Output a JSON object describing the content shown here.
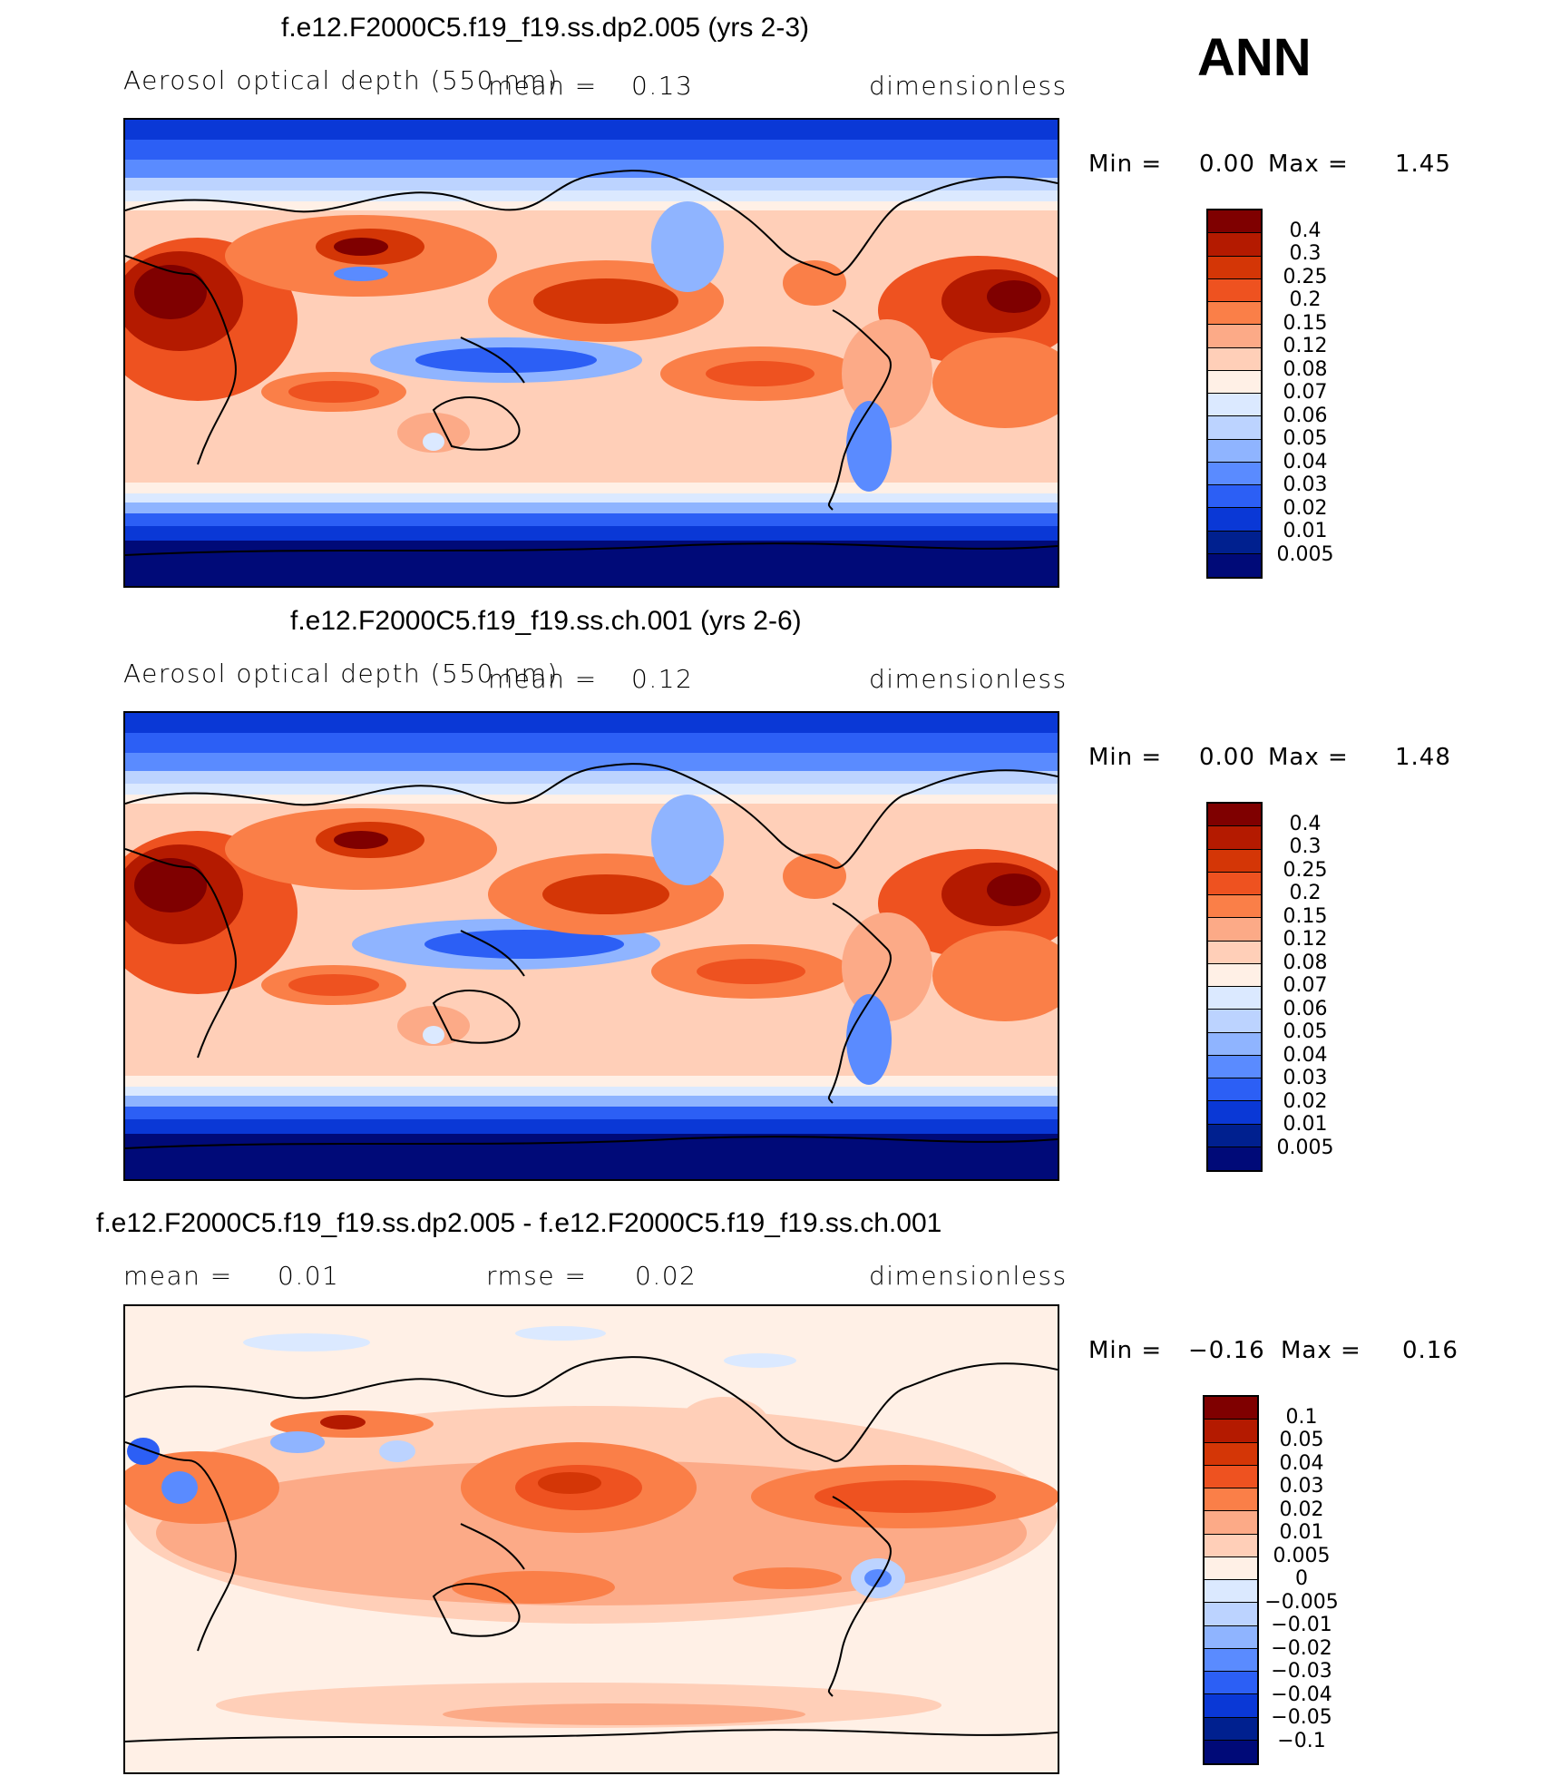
{
  "season": "ANN",
  "panels": [
    {
      "title": "f.e12.F2000C5.f19_f19.ss.dp2.005 (yrs 2-3)",
      "variable": "Aerosol optical depth (550 nm)",
      "stat1_label": "mean =",
      "stat1_value": "0.13",
      "units": "dimensionless",
      "min_label": "Min =",
      "min_value": "0.00",
      "max_label": "Max =",
      "max_value": "1.45",
      "levels": [
        "0.4",
        "0.3",
        "0.25",
        "0.2",
        "0.15",
        "0.12",
        "0.08",
        "0.07",
        "0.06",
        "0.05",
        "0.04",
        "0.03",
        "0.02",
        "0.01",
        "0.005"
      ],
      "colors": [
        "#7f0000",
        "#b41a00",
        "#d43606",
        "#ee5220",
        "#fa7f48",
        "#fcaa87",
        "#ffcfb8",
        "#fff0e6",
        "#dbe9ff",
        "#bcd3ff",
        "#8fb4ff",
        "#5a8bff",
        "#2c5ff5",
        "#0a38d6",
        "#00208f",
        "#000a78"
      ]
    },
    {
      "title": "f.e12.F2000C5.f19_f19.ss.ch.001 (yrs 2-6)",
      "variable": "Aerosol optical depth (550 nm)",
      "stat1_label": "mean =",
      "stat1_value": "0.12",
      "units": "dimensionless",
      "min_label": "Min =",
      "min_value": "0.00",
      "max_label": "Max =",
      "max_value": "1.48",
      "levels": [
        "0.4",
        "0.3",
        "0.25",
        "0.2",
        "0.15",
        "0.12",
        "0.08",
        "0.07",
        "0.06",
        "0.05",
        "0.04",
        "0.03",
        "0.02",
        "0.01",
        "0.005"
      ],
      "colors": [
        "#7f0000",
        "#b41a00",
        "#d43606",
        "#ee5220",
        "#fa7f48",
        "#fcaa87",
        "#ffcfb8",
        "#fff0e6",
        "#dbe9ff",
        "#bcd3ff",
        "#8fb4ff",
        "#5a8bff",
        "#2c5ff5",
        "#0a38d6",
        "#00208f",
        "#000a78"
      ]
    },
    {
      "title": "f.e12.F2000C5.f19_f19.ss.dp2.005 - f.e12.F2000C5.f19_f19.ss.ch.001",
      "stat1_label": "mean =",
      "stat1_value": "0.01",
      "stat2_label": "rmse =",
      "stat2_value": "0.02",
      "units": "dimensionless",
      "min_label": "Min =",
      "min_value": "−0.16",
      "max_label": "Max =",
      "max_value": "0.16",
      "levels": [
        "0.1",
        "0.05",
        "0.04",
        "0.03",
        "0.02",
        "0.01",
        "0.005",
        "0",
        "−0.005",
        "−0.01",
        "−0.02",
        "−0.03",
        "−0.04",
        "−0.05",
        "−0.1"
      ],
      "colors": [
        "#7f0000",
        "#b41a00",
        "#d43606",
        "#ee5220",
        "#fa7f48",
        "#fcaa87",
        "#ffcfb8",
        "#fff0e6",
        "#dbe9ff",
        "#bcd3ff",
        "#8fb4ff",
        "#5a8bff",
        "#2c5ff5",
        "#0a38d6",
        "#00208f",
        "#000a78"
      ]
    }
  ]
}
